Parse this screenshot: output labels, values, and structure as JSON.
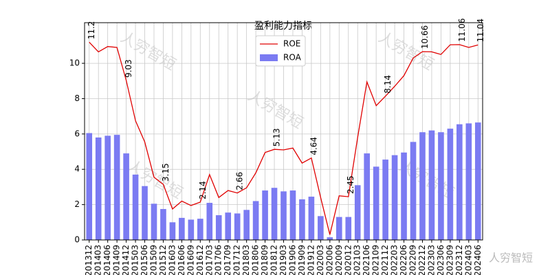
{
  "chart_data": {
    "type": "bar_line",
    "title": "盈利能力指标",
    "watermark": "人穷智短",
    "categories": [
      "201312",
      "201403",
      "201406",
      "201409",
      "201412",
      "201503",
      "201506",
      "201509",
      "201512",
      "201603",
      "201606",
      "201609",
      "201612",
      "201703",
      "201706",
      "201709",
      "201712",
      "201803",
      "201806",
      "201809",
      "201812",
      "201903",
      "201906",
      "201909",
      "201912",
      "202003",
      "202006",
      "202009",
      "202012",
      "202103",
      "202106",
      "202109",
      "202112",
      "202203",
      "202206",
      "202209",
      "202212",
      "202303",
      "202306",
      "202309",
      "202312",
      "202403",
      "202406"
    ],
    "series": [
      {
        "name": "ROE",
        "kind": "line",
        "color": "#e00000",
        "values": [
          11.2,
          10.65,
          10.95,
          10.9,
          9.03,
          6.75,
          5.55,
          3.55,
          3.15,
          1.75,
          2.2,
          1.95,
          2.14,
          3.7,
          2.4,
          2.8,
          2.66,
          2.95,
          3.8,
          4.95,
          5.13,
          5.1,
          5.2,
          4.35,
          4.64,
          2.4,
          0.3,
          2.5,
          2.45,
          5.8,
          8.95,
          7.6,
          8.14,
          8.7,
          9.3,
          10.3,
          10.66,
          10.65,
          10.5,
          11.05,
          11.06,
          10.9,
          11.04
        ],
        "value_labels": [
          "11.2",
          null,
          null,
          null,
          "9.03",
          null,
          null,
          null,
          "3.15",
          null,
          null,
          null,
          "2.14",
          null,
          null,
          null,
          "2.66",
          null,
          null,
          null,
          "5.13",
          null,
          null,
          null,
          "4.64",
          null,
          null,
          null,
          "2.45",
          null,
          null,
          null,
          "8.14",
          null,
          null,
          null,
          "10.66",
          null,
          null,
          null,
          "11.06",
          null,
          "11.04"
        ]
      },
      {
        "name": "ROA",
        "kind": "bar",
        "color": "#7b7bf2",
        "values": [
          6.05,
          5.8,
          5.9,
          5.95,
          4.9,
          3.7,
          3.05,
          2.05,
          1.75,
          1.0,
          1.25,
          1.15,
          1.2,
          2.1,
          1.4,
          1.55,
          1.5,
          1.7,
          2.2,
          2.8,
          2.95,
          2.75,
          2.8,
          2.3,
          2.45,
          1.35,
          0.15,
          1.3,
          1.3,
          3.1,
          4.9,
          4.15,
          4.55,
          4.8,
          4.95,
          5.55,
          6.1,
          6.2,
          6.1,
          6.3,
          6.55,
          6.6,
          6.65
        ]
      }
    ],
    "ylim": [
      0,
      12.3
    ],
    "yticks": [
      0,
      2,
      4,
      6,
      8,
      10
    ],
    "grid": true,
    "legend": "upper center"
  }
}
